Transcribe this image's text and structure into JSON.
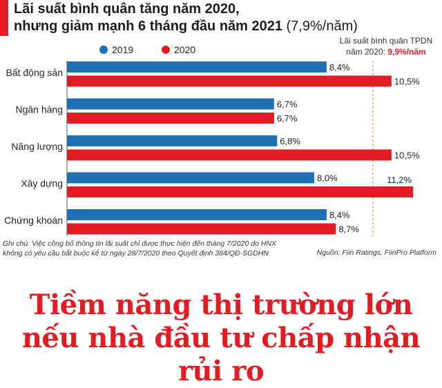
{
  "title": {
    "line1": "Lãi suất bình quân tăng năm 2020,",
    "line2": "nhưng giảm mạnh 6 tháng đầu năm 2021",
    "line2_suffix": " (7,9%/năm)"
  },
  "chart_data": {
    "type": "bar",
    "orientation": "horizontal",
    "categories": [
      "Bất động sản",
      "Ngân hàng",
      "Năng lượng",
      "Xây dựng",
      "Chứng khoán"
    ],
    "series": [
      {
        "name": "2019",
        "values": [
          8.4,
          6.7,
          6.8,
          8.0,
          8.4
        ],
        "labels": [
          "8,4%",
          "6,7%",
          "6,8%",
          "8,0%",
          "8,4%"
        ],
        "color": "#1f6fb5"
      },
      {
        "name": "2020",
        "values": [
          10.5,
          6.7,
          10.5,
          11.2,
          8.7
        ],
        "labels": [
          "10,5%",
          "6,7%",
          "10,5%",
          "11,2%",
          "8,7%"
        ],
        "color": "#e31b23"
      }
    ],
    "xlim": [
      0,
      12
    ],
    "legend_position": "top",
    "reference_line": {
      "value": 9.9,
      "label_prefix": "Lãi suất bình quân TPDN",
      "label_middle": "năm 2020: ",
      "label_value": "9,9%/năm",
      "label_color": "#e31b23",
      "line_color": "#e8a13a"
    }
  },
  "footnote": {
    "line1": "Ghi chú: Việc công bố thông tin lãi suất chỉ được thực hiện đến tháng 7/2020 do HNX",
    "line2": "không có yêu cầu bắt buộc kể từ ngày 28/7/2020 theo Quyết định 384/QĐ-SGDHN"
  },
  "source": "Nguồn: Fiin Ratings, FiinPro Platform",
  "headline": {
    "line1": "Tiềm năng thị trường lớn",
    "line2": "nếu nhà đầu tư chấp nhận rủi ro"
  },
  "colors": {
    "accent": "#e31b23",
    "blue": "#1f6fb5",
    "red": "#e31b23",
    "reference": "#e8a13a"
  }
}
